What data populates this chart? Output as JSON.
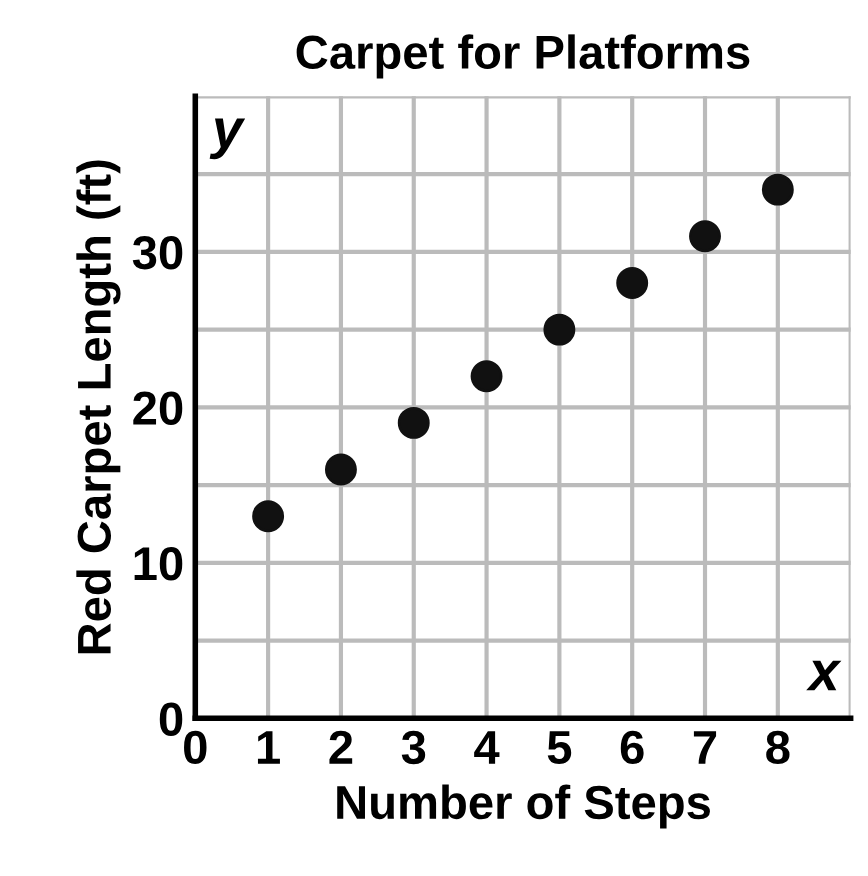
{
  "chart_data": {
    "type": "scatter",
    "title": "Carpet for Platforms",
    "xlabel": "Number of Steps",
    "ylabel": "Red Carpet Length (ft)",
    "annotations": [
      "x",
      "y"
    ],
    "x": [
      1,
      2,
      3,
      4,
      5,
      6,
      7,
      8
    ],
    "series": [
      {
        "color": "#111111",
        "values": [
          13,
          16,
          19,
          22,
          25,
          28,
          31,
          34
        ]
      }
    ],
    "xlim": [
      0,
      9
    ],
    "ylim": [
      0,
      40
    ],
    "xticks": [
      0,
      1,
      2,
      3,
      4,
      5,
      6,
      7,
      8,
      {
        "value": 9,
        "label": null
      }
    ],
    "yticks": [
      0,
      {
        "value": 5,
        "label": null
      },
      10,
      {
        "value": 15,
        "label": null
      },
      20,
      {
        "value": 25,
        "label": null
      },
      30,
      {
        "value": 35,
        "label": null
      },
      {
        "value": 40,
        "label": null
      }
    ],
    "grid": true,
    "marker": "circle"
  }
}
